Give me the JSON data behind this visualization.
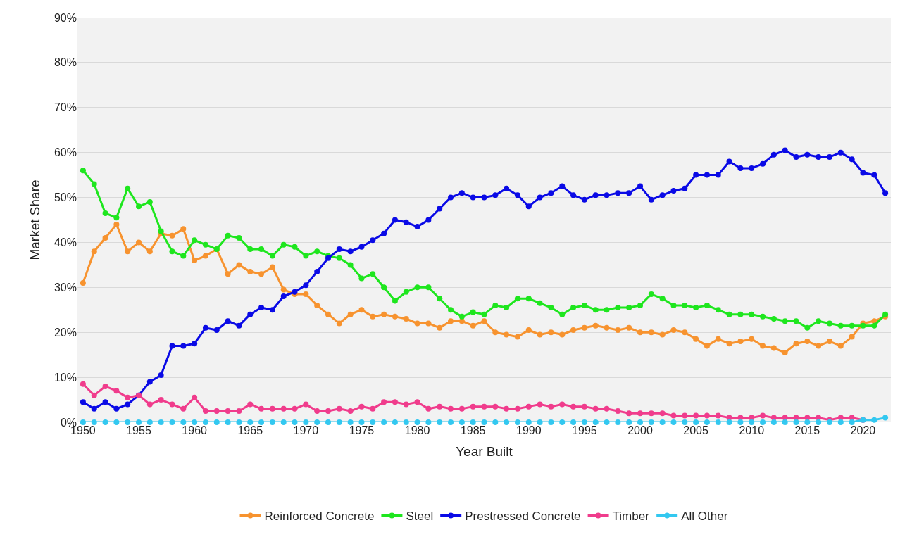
{
  "chart_data": {
    "type": "line",
    "xlabel": "Year Built",
    "ylabel": "Market Share",
    "x": [
      1950,
      1951,
      1952,
      1953,
      1954,
      1955,
      1956,
      1957,
      1958,
      1959,
      1960,
      1961,
      1962,
      1963,
      1964,
      1965,
      1966,
      1967,
      1968,
      1969,
      1970,
      1971,
      1972,
      1973,
      1974,
      1975,
      1976,
      1977,
      1978,
      1979,
      1980,
      1981,
      1982,
      1983,
      1984,
      1985,
      1986,
      1987,
      1988,
      1989,
      1990,
      1991,
      1992,
      1993,
      1994,
      1995,
      1996,
      1997,
      1998,
      1999,
      2000,
      2001,
      2002,
      2003,
      2004,
      2005,
      2006,
      2007,
      2008,
      2009,
      2010,
      2011,
      2012,
      2013,
      2014,
      2015,
      2016,
      2017,
      2018,
      2019,
      2020,
      2021,
      2022
    ],
    "series": [
      {
        "name": "Reinforced Concrete",
        "color": "#f7932f",
        "values": [
          31,
          38,
          41,
          44,
          38,
          40,
          38,
          42,
          41.5,
          43,
          36,
          37,
          38.5,
          33,
          35,
          33.5,
          33,
          34.5,
          29.5,
          28.5,
          28.5,
          26,
          24,
          22,
          24,
          25,
          23.5,
          24,
          23.5,
          23,
          22,
          22,
          21,
          22.5,
          22.5,
          21.5,
          22.5,
          20,
          19.5,
          19,
          20.5,
          19.5,
          20,
          19.5,
          20.5,
          21,
          21.5,
          21,
          20.5,
          21,
          20,
          20,
          19.5,
          20.5,
          20,
          18.5,
          17,
          18.5,
          17.5,
          18,
          18.5,
          17,
          16.5,
          15.5,
          17.5,
          18,
          17,
          18,
          17,
          19,
          22,
          22.5,
          23.5
        ]
      },
      {
        "name": "Steel",
        "color": "#1ee61e",
        "values": [
          56,
          53,
          46.5,
          45.5,
          52,
          48,
          49,
          42.5,
          38,
          37,
          40.5,
          39.5,
          38.5,
          41.5,
          41,
          38.5,
          38.5,
          37,
          39.5,
          39,
          37,
          38,
          37,
          36.5,
          35,
          32,
          33,
          30,
          27,
          29,
          30,
          30,
          27.5,
          25,
          23.5,
          24.5,
          24,
          26,
          25.5,
          27.5,
          27.5,
          26.5,
          25.5,
          24,
          25.5,
          26,
          25,
          25,
          25.5,
          25.5,
          26,
          28.5,
          27.5,
          26,
          26,
          25.5,
          26,
          25,
          24,
          24,
          24,
          23.5,
          23,
          22.5,
          22.5,
          21,
          22.5,
          22,
          21.5,
          21.5,
          21.5,
          21.5,
          24
        ]
      },
      {
        "name": "Prestressed Concrete",
        "color": "#0a0ae6",
        "values": [
          4.5,
          3,
          4.5,
          3,
          4,
          6,
          9,
          10.5,
          17,
          17,
          17.5,
          21,
          20.5,
          22.5,
          21.5,
          24,
          25.5,
          25,
          28,
          29,
          30.5,
          33.5,
          36.5,
          38.5,
          38,
          39,
          40.5,
          42,
          45,
          44.5,
          43.5,
          45,
          47.5,
          50,
          51,
          50,
          50,
          50.5,
          52,
          50.5,
          48,
          50,
          51,
          52.5,
          50.5,
          49.5,
          50.5,
          50.5,
          51,
          51,
          52.5,
          49.5,
          50.5,
          51.5,
          52,
          55,
          55,
          55,
          58,
          56.5,
          56.5,
          57.5,
          59.5,
          60.5,
          59,
          59.5,
          59,
          59,
          60,
          58.5,
          55.5,
          55,
          51
        ]
      },
      {
        "name": "Timber",
        "color": "#f03c8c",
        "values": [
          8.5,
          6,
          8,
          7,
          5.5,
          6,
          4,
          5,
          4,
          3,
          5.5,
          2.5,
          2.5,
          2.5,
          2.5,
          4,
          3,
          3,
          3,
          3,
          4,
          2.5,
          2.5,
          3,
          2.5,
          3.5,
          3,
          4.5,
          4.5,
          4,
          4.5,
          3,
          3.5,
          3,
          3,
          3.5,
          3.5,
          3.5,
          3,
          3,
          3.5,
          4,
          3.5,
          4,
          3.5,
          3.5,
          3,
          3,
          2.5,
          2,
          2,
          2,
          2,
          1.5,
          1.5,
          1.5,
          1.5,
          1.5,
          1,
          1,
          1,
          1.5,
          1,
          1,
          1,
          1,
          1,
          0.5,
          1,
          1,
          0.5,
          null,
          null
        ]
      },
      {
        "name": "All Other",
        "color": "#33c8f0",
        "values": [
          0,
          0,
          0,
          0,
          0,
          0,
          0,
          0,
          0,
          0,
          0,
          0,
          0,
          0,
          0,
          0,
          0,
          0,
          0,
          0,
          0,
          0,
          0,
          0,
          0,
          0,
          0,
          0,
          0,
          0,
          0,
          0,
          0,
          0,
          0,
          0,
          0,
          0,
          0,
          0,
          0,
          0,
          0,
          0,
          0,
          0,
          0,
          0,
          0,
          0,
          0,
          0,
          0,
          0,
          0,
          0,
          0,
          0,
          0,
          0,
          0,
          0,
          0,
          0,
          0,
          0,
          0,
          0,
          0,
          0,
          0.5,
          0.5,
          1
        ]
      }
    ],
    "xlim": [
      1949.5,
      2022.5
    ],
    "xticks": [
      1950,
      1955,
      1960,
      1965,
      1970,
      1975,
      1980,
      1985,
      1990,
      1995,
      2000,
      2005,
      2010,
      2015,
      2020
    ],
    "ylim": [
      0,
      90
    ],
    "yticks": [
      {
        "value": 0,
        "label": "0%"
      },
      {
        "value": 10,
        "label": "10%"
      },
      {
        "value": 20,
        "label": "20%"
      },
      {
        "value": 30,
        "label": "30%"
      },
      {
        "value": 40,
        "label": "40%"
      },
      {
        "value": 50,
        "label": "50%"
      },
      {
        "value": 60,
        "label": "60%"
      },
      {
        "value": 70,
        "label": "70%"
      },
      {
        "value": 80,
        "label": "80%"
      },
      {
        "value": 90,
        "label": "90%"
      }
    ],
    "grid": "y",
    "legend": "bottom",
    "marker": "circle",
    "line_style": "solid"
  }
}
